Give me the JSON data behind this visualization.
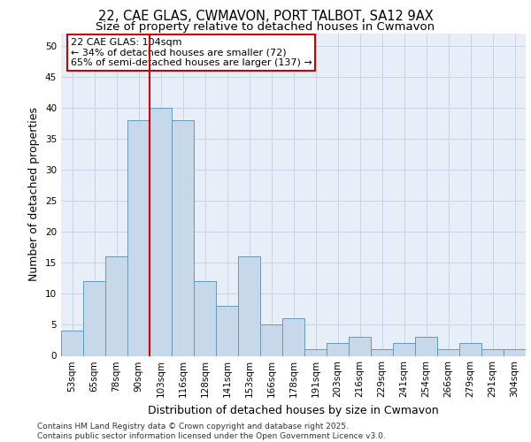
{
  "title_line1": "22, CAE GLAS, CWMAVON, PORT TALBOT, SA12 9AX",
  "title_line2": "Size of property relative to detached houses in Cwmavon",
  "xlabel": "Distribution of detached houses by size in Cwmavon",
  "ylabel": "Number of detached properties",
  "categories": [
    "53sqm",
    "65sqm",
    "78sqm",
    "90sqm",
    "103sqm",
    "116sqm",
    "128sqm",
    "141sqm",
    "153sqm",
    "166sqm",
    "178sqm",
    "191sqm",
    "203sqm",
    "216sqm",
    "229sqm",
    "241sqm",
    "254sqm",
    "266sqm",
    "279sqm",
    "291sqm",
    "304sqm"
  ],
  "values": [
    4,
    12,
    16,
    38,
    40,
    38,
    12,
    8,
    16,
    5,
    6,
    1,
    2,
    3,
    1,
    2,
    3,
    1,
    2,
    1,
    1
  ],
  "bar_color": "#c8d8eb",
  "bar_edge_color": "#6699bb",
  "vline_x_index": 4,
  "vline_color": "#cc0000",
  "annotation_text": "22 CAE GLAS: 104sqm\n← 34% of detached houses are smaller (72)\n65% of semi-detached houses are larger (137) →",
  "annotation_box_color": "#ffffff",
  "annotation_box_edge_color": "#cc0000",
  "ylim": [
    0,
    52
  ],
  "yticks": [
    0,
    5,
    10,
    15,
    20,
    25,
    30,
    35,
    40,
    45,
    50
  ],
  "grid_color": "#c8d4e4",
  "background_color": "#e8eef8",
  "footer_text": "Contains HM Land Registry data © Crown copyright and database right 2025.\nContains public sector information licensed under the Open Government Licence v3.0.",
  "title_fontsize": 10.5,
  "subtitle_fontsize": 9.5,
  "axis_label_fontsize": 9,
  "tick_fontsize": 7.5,
  "annotation_fontsize": 8,
  "footer_fontsize": 6.5
}
